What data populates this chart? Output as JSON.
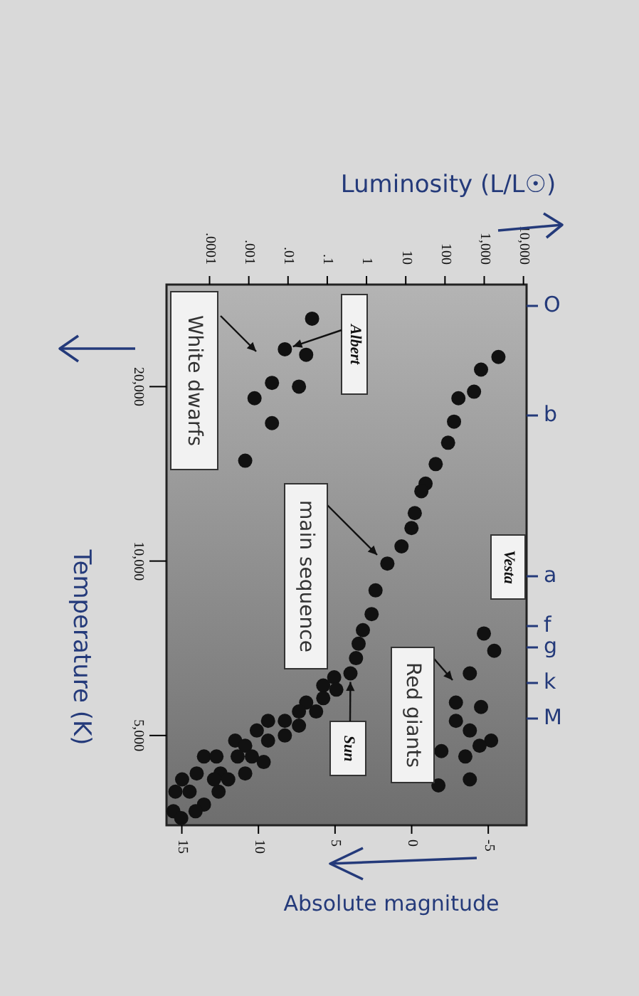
{
  "chart_data": {
    "type": "scatter",
    "xlabel": "Luminosity (L/L☉)",
    "ylabel": "Temperature (K)",
    "x2label": "Absolute magnitude",
    "log": "xy",
    "marker": "circle",
    "xlim": [
      8e-06,
      12000
    ],
    "xticks": [
      {
        "value": 0.0001,
        "label": ".0001"
      },
      {
        "value": 0.001,
        "label": ".001"
      },
      {
        "value": 0.01,
        "label": ".01"
      },
      {
        "value": 0.1,
        "label": ".1"
      },
      1,
      10,
      100,
      {
        "value": 1000,
        "label": "1,000"
      },
      {
        "value": 10000,
        "label": "10,000"
      }
    ],
    "ylim": [
      3500,
      30000
    ],
    "yticks": [
      {
        "value": 20000,
        "label": "20,000"
      },
      {
        "value": 10000,
        "label": "10,000"
      },
      {
        "value": 5000,
        "label": "5,000"
      }
    ],
    "x2lim": [
      16,
      -7.5
    ],
    "x2ticks": [
      15,
      10,
      5,
      0,
      -5
    ],
    "annotations": [
      "White dwarfs",
      {
        "text": "Albert",
        "x": 0.0083,
        "y": 23200
      },
      "main sequence",
      {
        "text": "Sun",
        "x": 0.39,
        "y": 6400
      },
      "Red giants",
      "Vesta",
      "O",
      "b",
      "a",
      "f",
      "g",
      "k",
      "M"
    ],
    "series": [
      {
        "color": "#111111",
        "x": [
          0.041,
          0.0083,
          0.029,
          0.0039,
          0.019,
          0.0014,
          0.0039,
          0.00081,
          2300,
          830,
          550,
          220,
          170,
          120,
          58,
          32,
          25,
          17,
          14,
          7.8,
          3.4,
          1.7,
          1.35,
          0.81,
          0.63,
          0.54,
          0.39,
          0.15,
          0.079,
          0.17,
          0.079,
          0.029,
          0.052,
          0.019,
          0.0083,
          0.0031,
          0.019,
          0.0016,
          0.0083,
          0.0031,
          0.00045,
          0.00081,
          7.2e-05,
          0.00015,
          0.00052,
          0.0012,
          0.0024,
          0.00019,
          0.00081,
          0.00013,
          0.0003,
          2e-05,
          4.7e-05,
          1.35e-05,
          3.1e-05,
          0.00017,
          7.2e-05,
          4.4e-05,
          1.2e-05,
          1.9e-05,
          980,
          1800,
          430,
          190,
          830,
          190,
          1500,
          430,
          81,
          330,
          430,
          68,
          760
        ],
        "values": [
          26200,
          23200,
          22700,
          20300,
          20000,
          19100,
          17300,
          14900,
          22500,
          21400,
          19600,
          19100,
          17400,
          16000,
          14700,
          13600,
          13200,
          12100,
          11400,
          10600,
          9900,
          8900,
          8100,
          7600,
          7200,
          6800,
          6400,
          6300,
          6100,
          6000,
          5800,
          5700,
          5500,
          5500,
          5300,
          5300,
          5200,
          5100,
          5000,
          4900,
          4900,
          4800,
          4600,
          4600,
          4600,
          4600,
          4500,
          4300,
          4300,
          4200,
          4200,
          4200,
          4300,
          4000,
          4000,
          4000,
          3800,
          3700,
          3700,
          3600,
          7500,
          7000,
          6400,
          5700,
          5600,
          5300,
          4900,
          5100,
          4700,
          4600,
          4200,
          4100,
          4800
        ]
      }
    ]
  }
}
